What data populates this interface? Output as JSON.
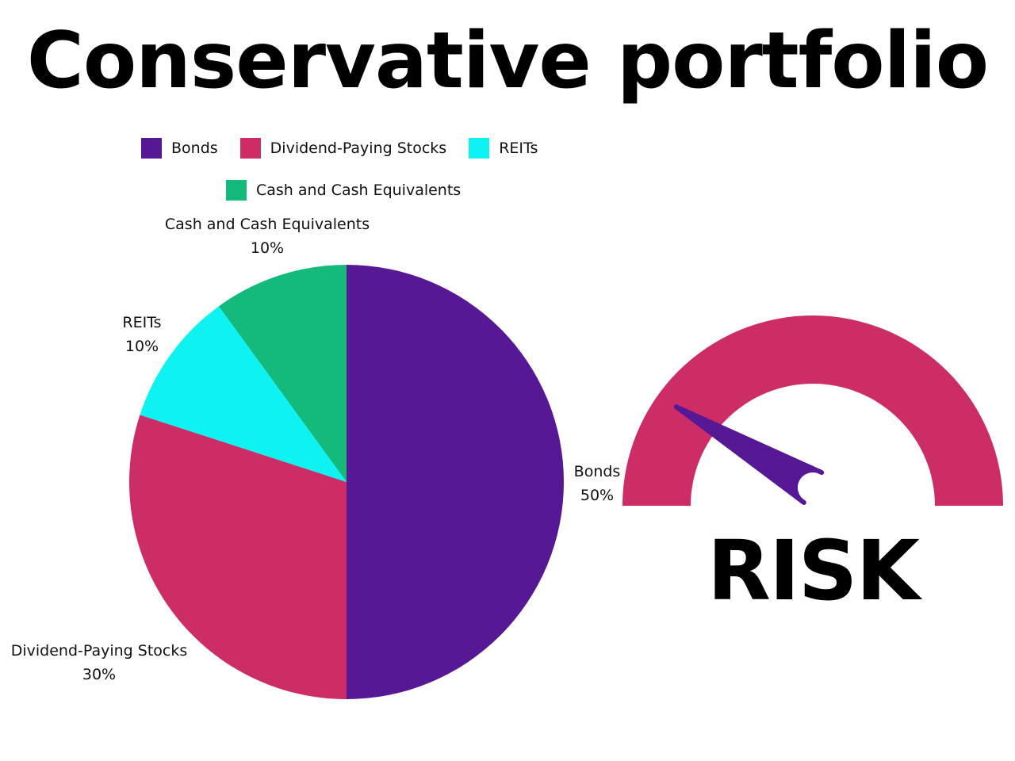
{
  "title": "Conservative portfolio",
  "chart_data": {
    "type": "pie",
    "title": "Conservative portfolio",
    "legend_position": "top",
    "slices": [
      {
        "label": "Bonds",
        "value": 50,
        "value_label": "50%",
        "color": "#561894"
      },
      {
        "label": "Dividend-Paying Stocks",
        "value": 30,
        "value_label": "30%",
        "color": "#CC2D66"
      },
      {
        "label": "REITs",
        "value": 10,
        "value_label": "10%",
        "color": "#0EF2F2"
      },
      {
        "label": "Cash and Cash Equivalents",
        "value": 10,
        "value_label": "10%",
        "color": "#13BA7C"
      }
    ]
  },
  "gauge": {
    "label": "RISK",
    "arc_color": "#CC2D66",
    "needle_color": "#561894",
    "level": 0.17
  }
}
